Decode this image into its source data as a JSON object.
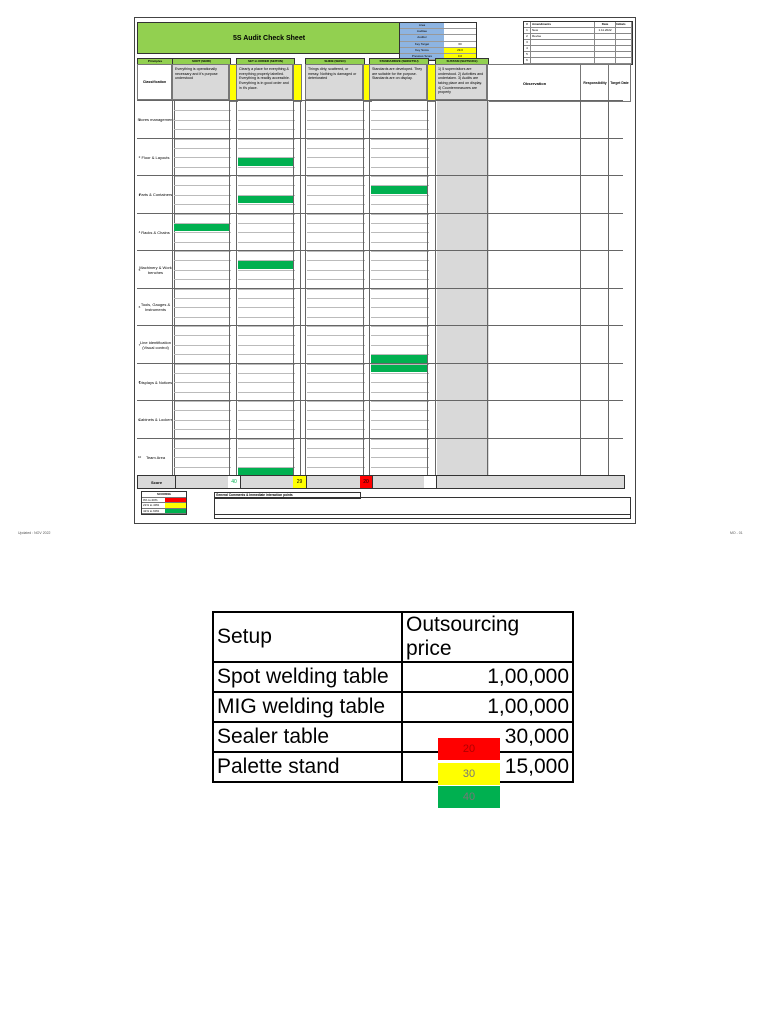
{
  "sheet": {
    "title": "5S Audit Check Sheet",
    "info_rows": [
      {
        "k": "Area",
        "v": "",
        "y": false
      },
      {
        "k": "Auditee",
        "v": "",
        "y": false
      },
      {
        "k": "Auditor",
        "v": "",
        "y": false
      },
      {
        "k": "Key Target",
        "v": "60",
        "y": false
      },
      {
        "k": "Key Score",
        "v": "29.0",
        "y": true
      },
      {
        "k": "Previous Score",
        "v": "0.0",
        "y": true
      }
    ],
    "amendments": {
      "headers": [
        "#",
        "Amendments",
        "Date",
        "Initials"
      ],
      "rows": [
        [
          "1",
          "New",
          "1.11.2022",
          ""
        ],
        [
          "2",
          "Revise",
          "",
          ""
        ],
        [
          "3",
          "",
          "",
          ""
        ],
        [
          "4",
          "",
          "",
          ""
        ],
        [
          "5",
          "",
          "",
          ""
        ],
        [
          "6",
          "",
          "",
          ""
        ]
      ]
    },
    "column_headers": [
      "Principles",
      "SORT (SEIRI)",
      "SET in ORDER (SEITON)",
      "SHINE (SEISO)",
      "STANDARDIZE (SEIKETSU)",
      "SUSTAIN (SHITSUKE)"
    ],
    "classification": "Classification",
    "descriptions": [
      "Everything is operationally necessary and it's purpose understood",
      "Clearly a place for everything & everything properly labelled. Everything is readily accessible. Everything is in good order and in it's place.",
      "Things dirty, scattered, or messy. Nothing is damaged or deteriorated",
      "Standards are developed. They are suitable for the purpose. Standards are on display.",
      "1) 5 supervisitors are understood. 2) Activities and undertaken. 3) Audits are taking place and on display. 4) Countermeasures are properly"
    ],
    "observation_header": "Observation",
    "responsibility_header": "Responsibility",
    "target_header": "Target Date",
    "sections": [
      {
        "num": "1",
        "name": "Stores management"
      },
      {
        "num": "2",
        "name": "Floor & Layouts"
      },
      {
        "num": "3",
        "name": "Parts & Containers"
      },
      {
        "num": "4",
        "name": "Racks & Chains"
      },
      {
        "num": "5",
        "name": "Machinery & Work benches"
      },
      {
        "num": "6",
        "name": "Tools, Gauges & Instruments"
      },
      {
        "num": "7",
        "name": "Line identification (Visual control)"
      },
      {
        "num": "8",
        "name": "Displays & Notices"
      },
      {
        "num": "9",
        "name": "Cabinets & Lockers"
      },
      {
        "num": "10",
        "name": "Team Area"
      }
    ],
    "score": {
      "label": "Score",
      "sort": "40",
      "shine": "29",
      "sustain": "20"
    },
    "legend": {
      "title": "SCORING",
      "rows": [
        {
          "k": "0% to 20%",
          "c": "#ff0000"
        },
        {
          "k": "21% to 40%",
          "c": "#ffff00"
        },
        {
          "k": "41% to 60%",
          "c": "#00b050"
        }
      ]
    },
    "comments_label": "General Comments & Immediate interaction points",
    "footer_left": "Updated : NOV 2022",
    "footer_right": "MO - 01"
  },
  "price_table": {
    "headers": [
      "Setup",
      "Outsourcing price"
    ],
    "rows": [
      [
        "Spot welding table",
        "1,00,000"
      ],
      [
        "MIG welding table",
        "1,00,000"
      ],
      [
        "Sealer table",
        "30,000"
      ],
      [
        "Palette stand",
        "15,000"
      ]
    ]
  },
  "swatches": [
    {
      "label": "20",
      "color": "#ff0000"
    },
    {
      "label": "30",
      "color": "#ffff00"
    },
    {
      "label": "40",
      "color": "#00b050"
    }
  ]
}
